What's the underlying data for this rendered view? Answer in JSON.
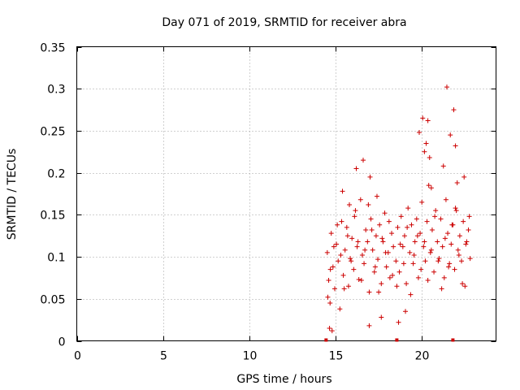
{
  "chart_data": {
    "type": "scatter",
    "title": "Day 071 of 2019, SRMTID for receiver abra",
    "xlabel": "GPS time / hours",
    "ylabel": "SRMTID / TECUs",
    "xlim": [
      0,
      24.3
    ],
    "ylim": [
      0,
      0.35
    ],
    "xticks": [
      "0",
      "5",
      "10",
      "15",
      "20"
    ],
    "yticks": [
      "0",
      "0.05",
      "0.1",
      "0.15",
      "0.2",
      "0.25",
      "0.3",
      "0.35"
    ],
    "grid": true,
    "marker_color": "#cc0000",
    "series": [
      {
        "name": "SRMTID",
        "x": [
          14.52,
          14.6,
          14.68,
          14.75,
          14.85,
          14.95,
          15.05,
          15.15,
          15.25,
          15.35,
          15.45,
          15.55,
          15.65,
          15.75,
          15.85,
          15.95,
          16.05,
          16.15,
          16.25,
          16.35,
          16.45,
          16.55,
          16.65,
          16.75,
          16.85,
          16.95,
          17.05,
          17.15,
          17.25,
          17.35,
          17.45,
          17.55,
          17.65,
          17.75,
          17.85,
          17.95,
          18.05,
          18.15,
          18.25,
          18.35,
          18.5,
          18.6,
          18.7,
          18.8,
          18.9,
          19.0,
          19.1,
          19.2,
          19.3,
          19.4,
          19.5,
          19.6,
          19.7,
          19.8,
          19.9,
          20.0,
          20.1,
          20.2,
          20.3,
          20.4,
          20.5,
          20.6,
          20.7,
          20.8,
          20.9,
          21.0,
          21.1,
          21.2,
          21.3,
          21.4,
          21.5,
          21.6,
          21.7,
          21.8,
          21.9,
          22.0,
          22.1,
          22.2,
          22.3,
          22.4,
          22.5,
          22.6,
          22.7,
          22.8,
          14.55,
          14.7,
          14.9,
          15.1,
          15.3,
          15.5,
          15.7,
          15.9,
          16.1,
          16.3,
          16.5,
          16.7,
          16.9,
          17.1,
          17.3,
          17.5,
          17.7,
          17.9,
          18.1,
          18.3,
          18.55,
          18.75,
          18.95,
          19.15,
          19.35,
          19.55,
          19.75,
          19.95,
          20.15,
          20.35,
          20.55,
          20.75,
          20.95,
          21.15,
          21.35,
          21.55,
          21.75,
          21.95,
          22.15,
          22.35,
          22.55,
          22.75,
          20.05,
          20.25,
          20.45,
          21.45,
          21.65,
          21.85,
          22.05,
          16.2,
          16.6,
          17.0,
          17.4,
          15.8,
          15.4,
          20.15,
          20.35,
          19.85,
          21.25,
          22.45,
          21.95,
          20.55,
          19.05,
          18.65,
          17.65,
          16.95,
          14.65,
          14.8
        ],
        "y": [
          0.105,
          0.072,
          0.045,
          0.128,
          0.088,
          0.062,
          0.115,
          0.095,
          0.038,
          0.142,
          0.078,
          0.108,
          0.135,
          0.065,
          0.098,
          0.122,
          0.085,
          0.155,
          0.112,
          0.073,
          0.168,
          0.102,
          0.092,
          0.132,
          0.118,
          0.058,
          0.145,
          0.108,
          0.082,
          0.125,
          0.097,
          0.138,
          0.068,
          0.118,
          0.152,
          0.088,
          0.105,
          0.075,
          0.128,
          0.112,
          0.095,
          0.135,
          0.082,
          0.148,
          0.112,
          0.125,
          0.068,
          0.158,
          0.105,
          0.138,
          0.092,
          0.118,
          0.145,
          0.075,
          0.128,
          0.165,
          0.112,
          0.095,
          0.142,
          0.185,
          0.105,
          0.132,
          0.082,
          0.155,
          0.118,
          0.098,
          0.145,
          0.112,
          0.075,
          0.168,
          0.128,
          0.092,
          0.115,
          0.138,
          0.085,
          0.155,
          0.108,
          0.125,
          0.095,
          0.142,
          0.065,
          0.118,
          0.132,
          0.098,
          0.052,
          0.085,
          0.112,
          0.138,
          0.102,
          0.062,
          0.125,
          0.095,
          0.148,
          0.118,
          0.072,
          0.108,
          0.162,
          0.132,
          0.088,
          0.058,
          0.122,
          0.105,
          0.142,
          0.078,
          0.065,
          0.115,
          0.092,
          0.135,
          0.055,
          0.102,
          0.125,
          0.085,
          0.118,
          0.072,
          0.108,
          0.148,
          0.095,
          0.062,
          0.122,
          0.088,
          0.138,
          0.158,
          0.102,
          0.068,
          0.115,
          0.148,
          0.265,
          0.235,
          0.218,
          0.302,
          0.245,
          0.275,
          0.188,
          0.205,
          0.215,
          0.195,
          0.172,
          0.162,
          0.178,
          0.225,
          0.262,
          0.248,
          0.208,
          0.195,
          0.232,
          0.182,
          0.035,
          0.022,
          0.028,
          0.018,
          0.015,
          0.012
        ]
      }
    ],
    "rug_x": [
      14.45,
      18.55,
      21.8
    ]
  }
}
